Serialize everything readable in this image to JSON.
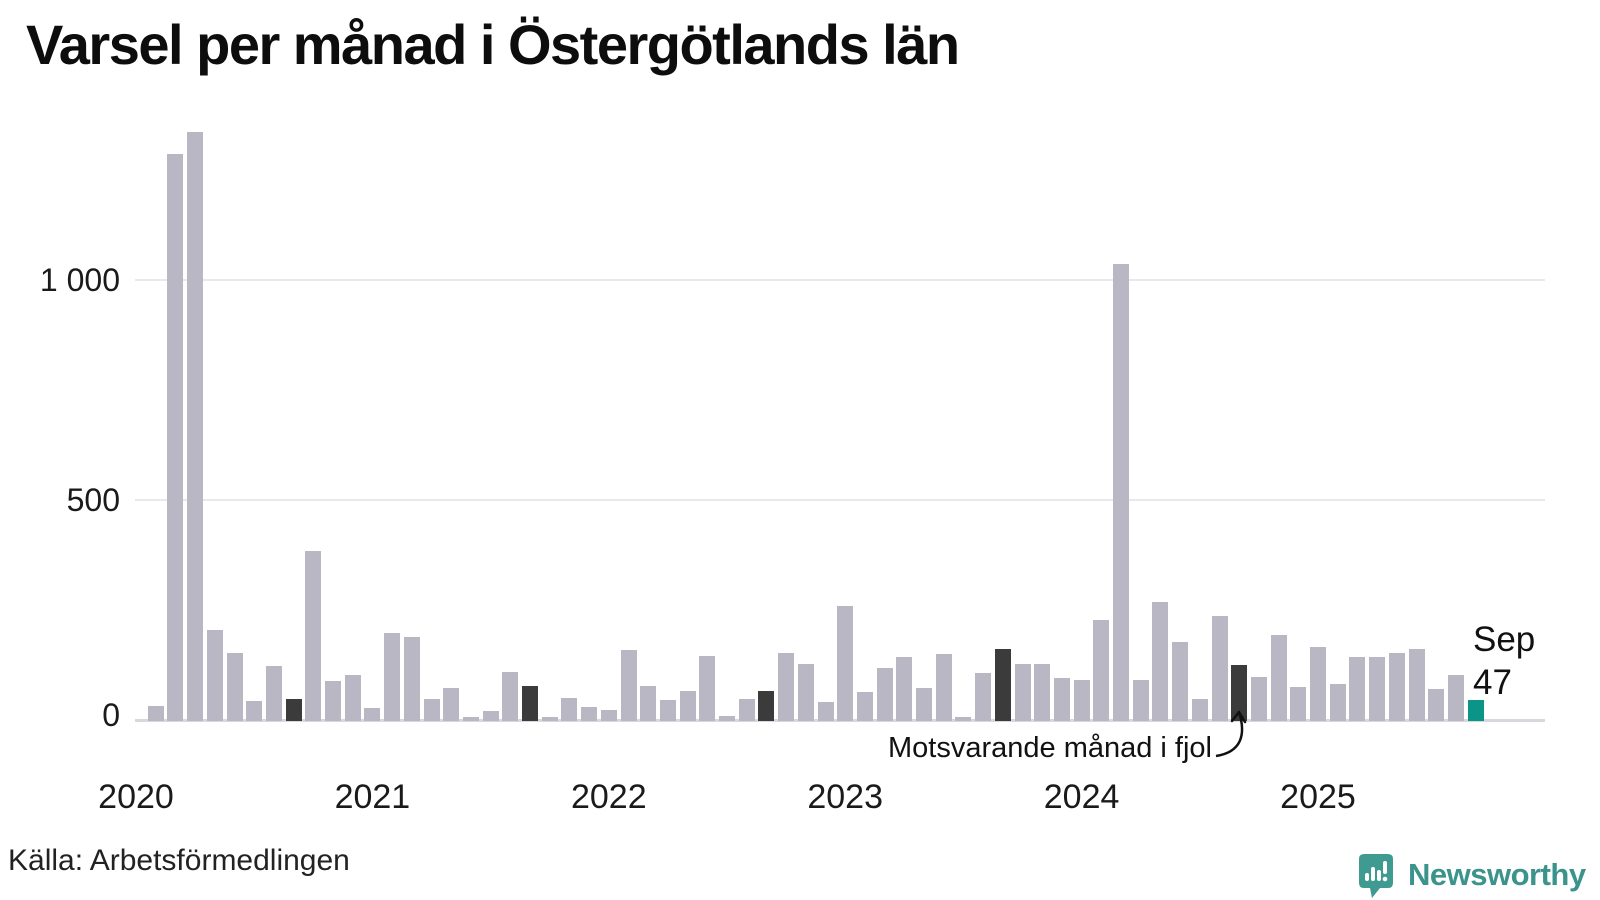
{
  "title": "Varsel per månad i Östergötlands län",
  "source": "Källa: Arbetsförmedlingen",
  "logo_text": "Newsworthy",
  "annotation_label": "Motsvarande månad i fjol",
  "current_label": {
    "month": "Sep",
    "value": "47"
  },
  "colors": {
    "bar": "#b9b7c4",
    "previous_september": "#3b3b3b",
    "current": "#0b9488",
    "logo": "#3f9a92",
    "gridline": "#e9e9ed",
    "axis": "#d7d7dd"
  },
  "y_axis": {
    "ticks": [
      {
        "label": "1 000",
        "value": 1000
      },
      {
        "label": "500",
        "value": 500
      },
      {
        "label": "0",
        "value": 0
      }
    ]
  },
  "x_axis": {
    "year_labels": [
      {
        "label": "2020",
        "month_index": 0
      },
      {
        "label": "2021",
        "month_index": 12
      },
      {
        "label": "2022",
        "month_index": 24
      },
      {
        "label": "2023",
        "month_index": 36
      },
      {
        "label": "2024",
        "month_index": 48
      },
      {
        "label": "2025",
        "month_index": 60
      }
    ]
  },
  "chart_data": {
    "type": "bar",
    "title": "Varsel per månad i Östergötlands län",
    "xlabel": "",
    "ylabel": "",
    "ylim": [
      0,
      1400
    ],
    "yticks": [
      0,
      500,
      1000
    ],
    "grid": true,
    "x": [
      "2020-01",
      "2020-02",
      "2020-03",
      "2020-04",
      "2020-05",
      "2020-06",
      "2020-07",
      "2020-08",
      "2020-09",
      "2020-10",
      "2020-11",
      "2020-12",
      "2021-01",
      "2021-02",
      "2021-03",
      "2021-04",
      "2021-05",
      "2021-06",
      "2021-07",
      "2021-08",
      "2021-09",
      "2021-10",
      "2021-11",
      "2021-12",
      "2022-01",
      "2022-02",
      "2022-03",
      "2022-04",
      "2022-05",
      "2022-06",
      "2022-07",
      "2022-08",
      "2022-09",
      "2022-10",
      "2022-11",
      "2022-12",
      "2023-01",
      "2023-02",
      "2023-03",
      "2023-04",
      "2023-05",
      "2023-06",
      "2023-07",
      "2023-08",
      "2023-09",
      "2023-10",
      "2023-11",
      "2023-12",
      "2024-01",
      "2024-02",
      "2024-03",
      "2024-04",
      "2024-05",
      "2024-06",
      "2024-07",
      "2024-08",
      "2024-09",
      "2024-10",
      "2024-11",
      "2024-12",
      "2025-01",
      "2025-02",
      "2025-03",
      "2025-04",
      "2025-05",
      "2025-06",
      "2025-07",
      "2025-08",
      "2025-09"
    ],
    "values": [
      0,
      35,
      1285,
      1335,
      205,
      155,
      45,
      125,
      50,
      385,
      90,
      105,
      30,
      200,
      190,
      50,
      75,
      8,
      22,
      112,
      80,
      10,
      52,
      32,
      25,
      160,
      80,
      48,
      68,
      148,
      12,
      50,
      68,
      154,
      130,
      44,
      260,
      65,
      120,
      146,
      75,
      152,
      8,
      109,
      162,
      130,
      129,
      97,
      92,
      228,
      1035,
      93,
      270,
      180,
      50,
      237,
      127,
      100,
      194,
      78,
      167,
      84,
      145,
      145,
      154,
      163,
      73,
      104,
      47
    ],
    "highlight": {
      "dark_months": [
        "2020-09",
        "2021-09",
        "2022-09",
        "2023-09",
        "2024-09"
      ],
      "dark_meaning": "Motsvarande månad i fjol",
      "current_month": "2025-09",
      "current_value_label": "Sep 47"
    },
    "legend_position": "annotation-inline",
    "source": "Källa: Arbetsförmedlingen"
  }
}
